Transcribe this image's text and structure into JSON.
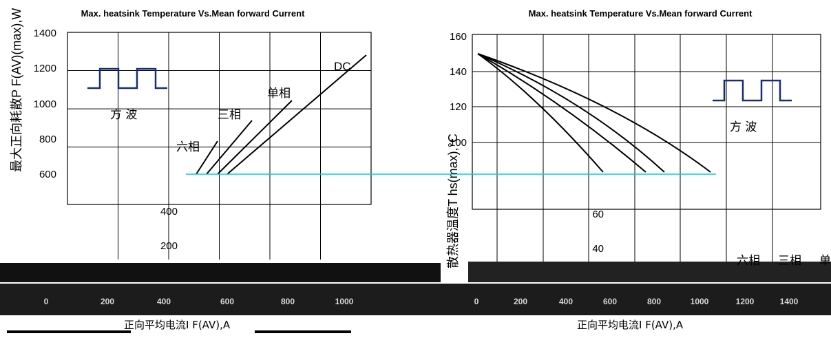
{
  "chart_data": [
    {
      "type": "line",
      "title": "Max. heatsink Temperature Vs.Mean forward Current",
      "ylabel": "最大正向耗散P F(AV)(max),W",
      "xlabel": "正向平均电流I F(AV),A",
      "ylim": [
        0,
        1400
      ],
      "xlim": [
        0,
        1200
      ],
      "yticks": [
        "1400",
        "1200",
        "1000",
        "800",
        "600",
        "400",
        "200"
      ],
      "xticks": [
        "0",
        "200",
        "400",
        "600",
        "800",
        "1000"
      ],
      "grid": true,
      "inset": {
        "label": "方  波",
        "waveform": "square-wave"
      },
      "series": [
        {
          "name": "DC",
          "x": [
            0,
            200,
            400,
            600,
            800,
            1000,
            1200
          ],
          "y": [
            0,
            160,
            370,
            590,
            820,
            1060,
            1300
          ]
        },
        {
          "name": "单相",
          "x": [
            0,
            200,
            400,
            600,
            800,
            1000
          ],
          "y": [
            0,
            170,
            390,
            630,
            880,
            1140
          ]
        },
        {
          "name": "三相",
          "x": [
            0,
            200,
            400,
            600,
            800,
            900
          ],
          "y": [
            0,
            190,
            440,
            710,
            1000,
            1150
          ]
        },
        {
          "name": "六相",
          "x": [
            0,
            200,
            400,
            600,
            700
          ],
          "y": [
            0,
            210,
            490,
            790,
            950
          ]
        }
      ]
    },
    {
      "type": "line",
      "title": "Max. heatsink Temperature Vs.Mean forward Current",
      "ylabel": "散热器温度T hs(max),°C",
      "xlabel": "正向平均电流I F(AV),A",
      "ylim": [
        0,
        160
      ],
      "xlim": [
        0,
        1600
      ],
      "yticks": [
        "160",
        "140",
        "120",
        "100",
        "60",
        "40"
      ],
      "xticks": [
        "0",
        "200",
        "400",
        "600",
        "800",
        "1000",
        "1200",
        "1400"
      ],
      "grid": true,
      "inset": {
        "label": "方  波",
        "waveform": "square-wave"
      },
      "series": [
        {
          "name": "六相",
          "x": [
            0,
            200,
            400,
            600,
            700
          ],
          "y": [
            150,
            135,
            115,
            87,
            72
          ]
        },
        {
          "name": "三相",
          "x": [
            0,
            200,
            400,
            600,
            800,
            900
          ],
          "y": [
            150,
            137,
            121,
            100,
            76,
            62
          ]
        },
        {
          "name": "单相",
          "x": [
            0,
            200,
            400,
            600,
            800,
            1000
          ],
          "y": [
            150,
            139,
            125,
            108,
            87,
            62
          ]
        },
        {
          "name": "DC",
          "x": [
            0,
            300,
            600,
            900,
            1200,
            1400
          ],
          "y": [
            150,
            138,
            123,
            104,
            80,
            62
          ]
        }
      ],
      "legend_visible": [
        "六相",
        "三相",
        "单"
      ]
    }
  ]
}
